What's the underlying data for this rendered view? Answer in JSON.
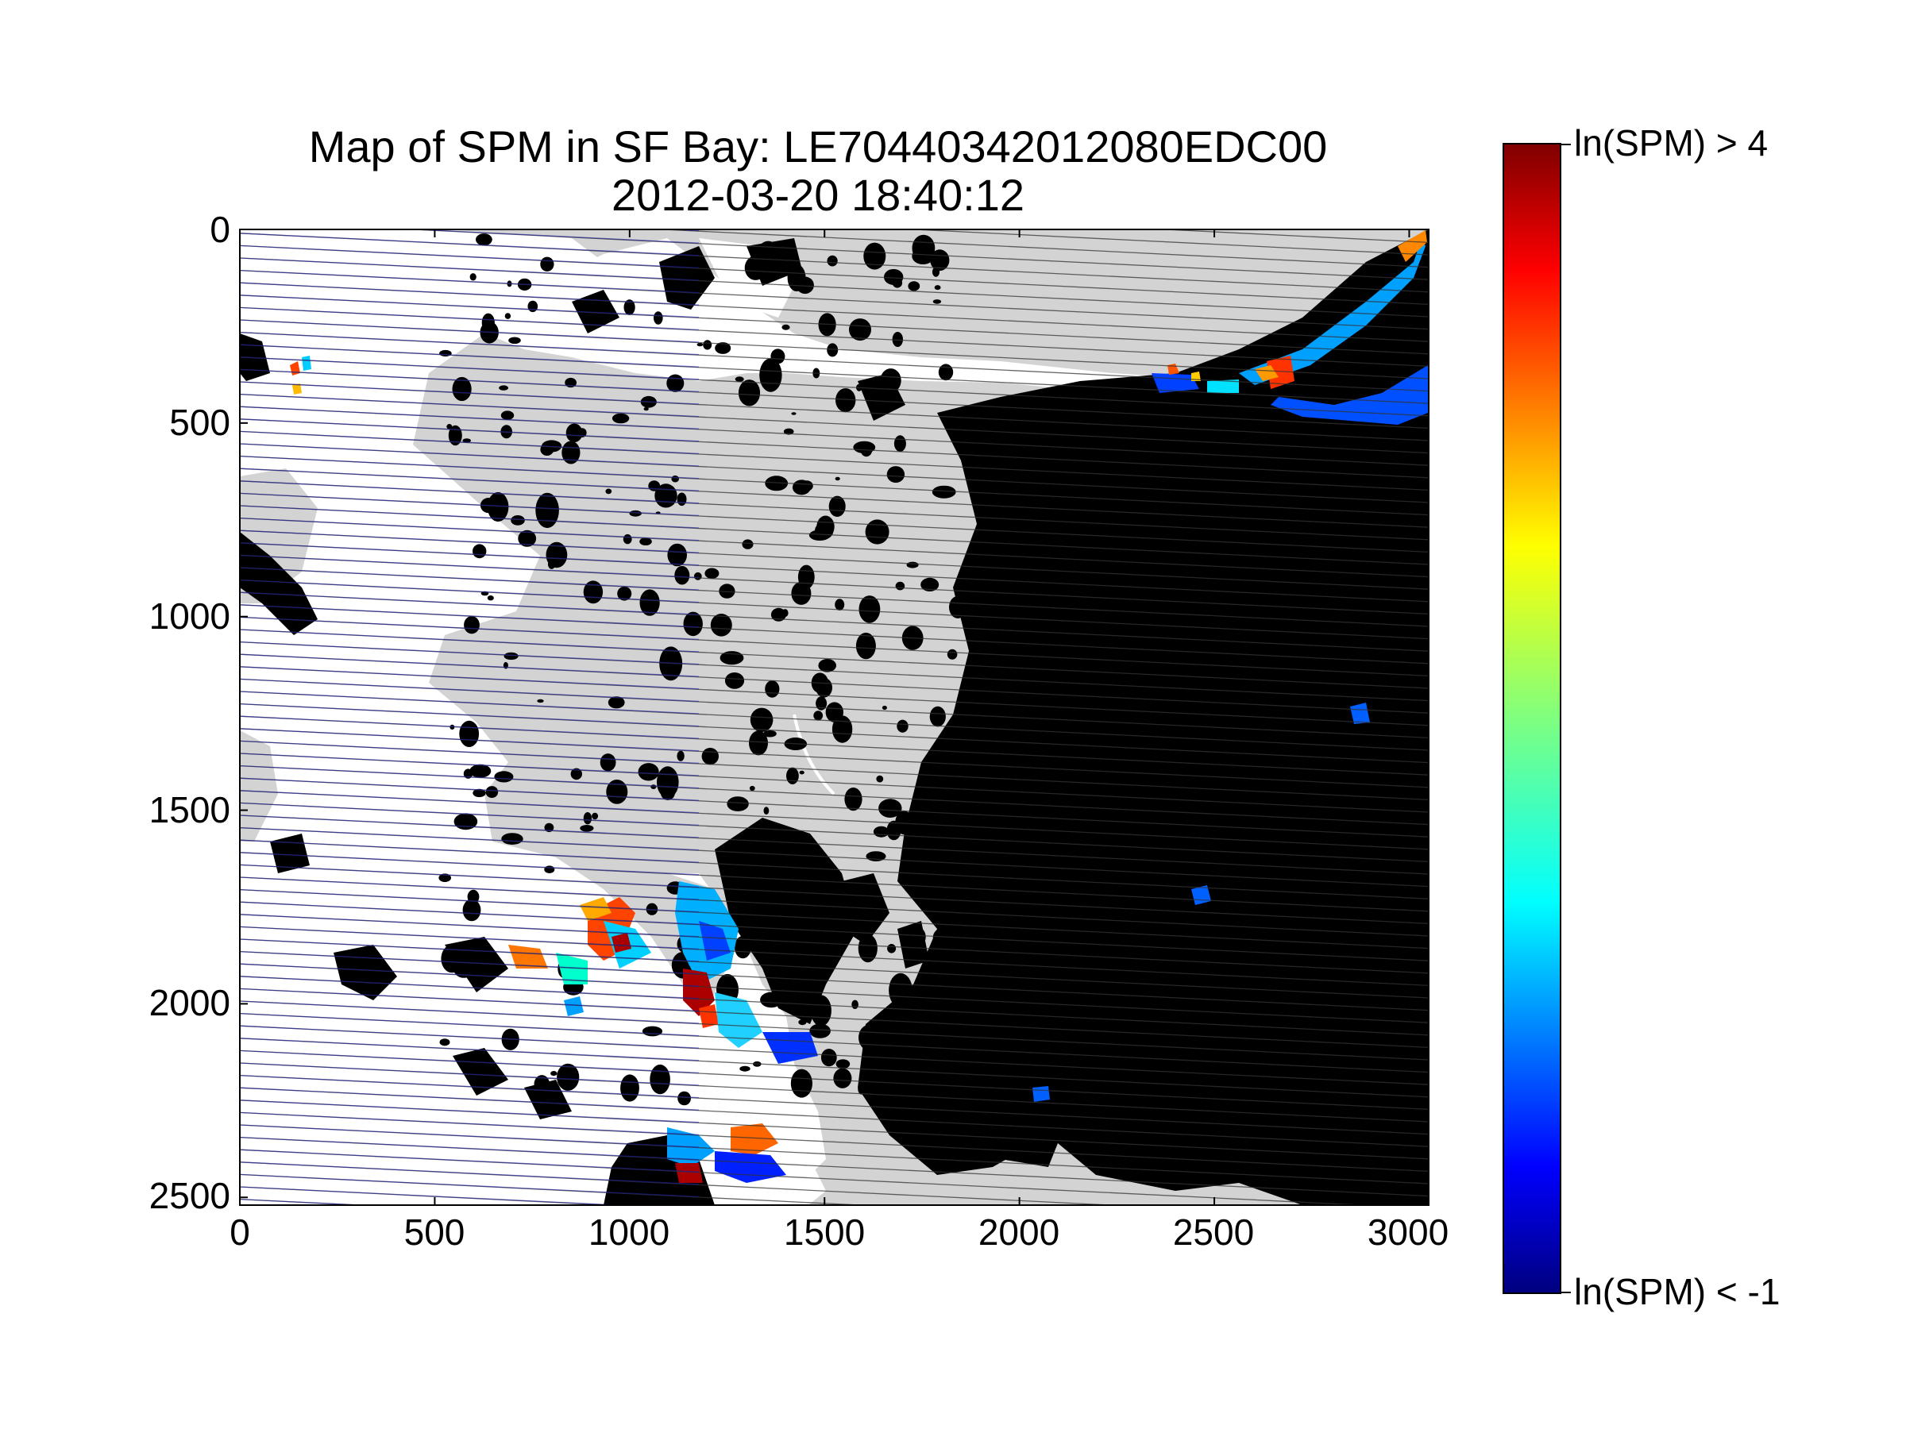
{
  "title": {
    "line1": "Map of SPM in SF Bay: LE70440342012080EDC00",
    "line2": "2012-03-20 18:40:12"
  },
  "axes": {
    "x_ticks": [
      "0",
      "500",
      "1000",
      "1500",
      "2000",
      "2500",
      "3000"
    ],
    "y_ticks": [
      "0",
      "500",
      "1000",
      "1500",
      "2000",
      "2500"
    ],
    "xlim": [
      0,
      3050
    ],
    "ylim": [
      2520,
      0
    ]
  },
  "colorbar": {
    "top_label": "ln(SPM) > 4",
    "bottom_label": "ln(SPM) < -1",
    "colormap": "jet",
    "colors": [
      "#00007f",
      "#0000ff",
      "#007fff",
      "#00ffff",
      "#7fff7f",
      "#ffff00",
      "#ff7f00",
      "#ff0000",
      "#7f0000"
    ]
  },
  "map_colors": {
    "land": "#d3d3d3",
    "cloud": "#000000",
    "water": "#ffffff",
    "scan_gap_on_land": "#333333",
    "scan_gap_on_water": "#1a1aa8"
  }
}
